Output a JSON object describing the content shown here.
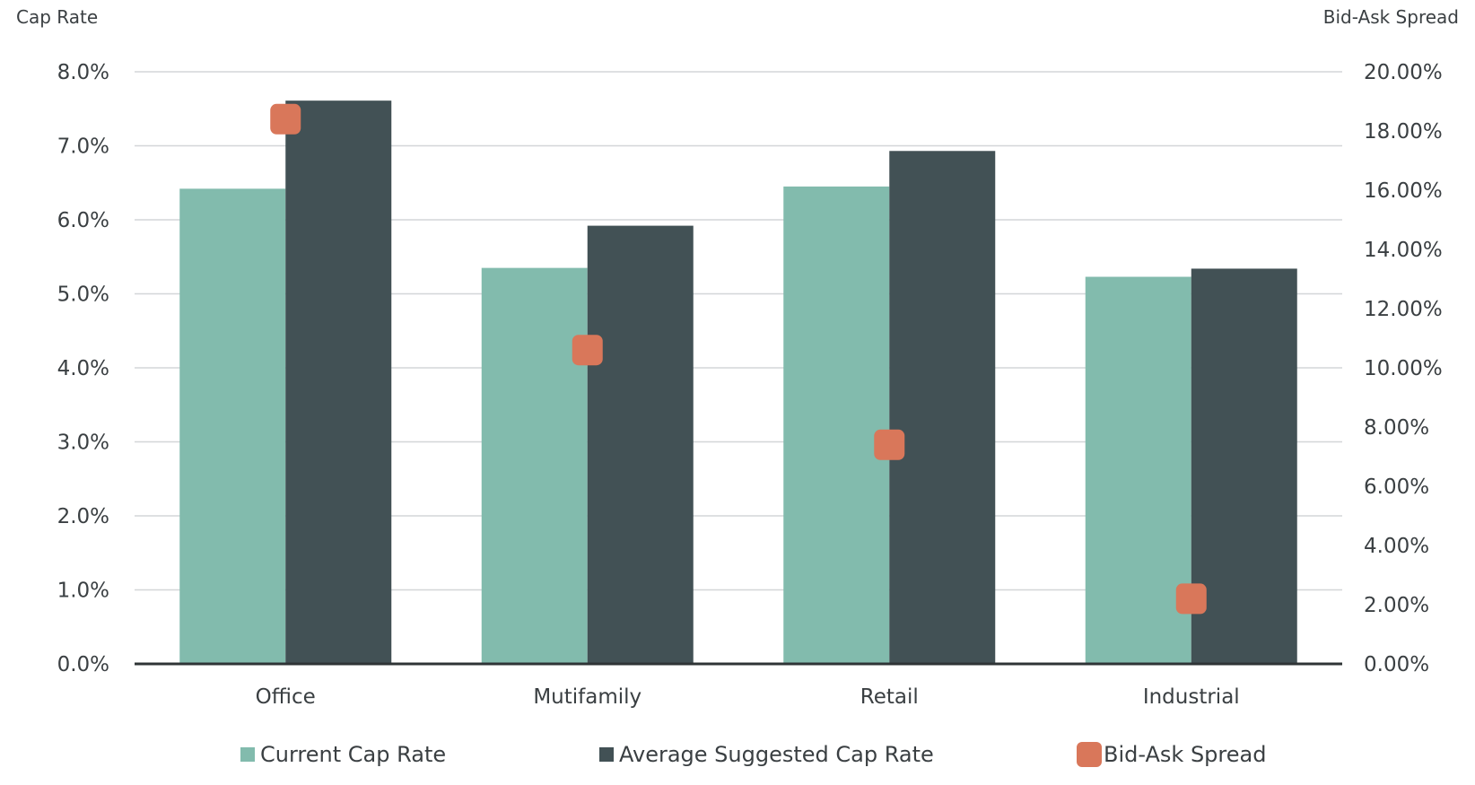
{
  "chart_data": {
    "type": "bar",
    "categories": [
      "Office",
      "Mutifamily",
      "Retail",
      "Industrial"
    ],
    "series": [
      {
        "name": "Current Cap Rate",
        "axis": "left",
        "kind": "bar",
        "color": "#82BBAD",
        "values": [
          6.42,
          5.35,
          6.45,
          5.23
        ]
      },
      {
        "name": "Average Suggested Cap Rate",
        "axis": "left",
        "kind": "bar",
        "color": "#425155",
        "values": [
          7.61,
          5.92,
          6.93,
          5.34
        ]
      },
      {
        "name": "Bid-Ask Spread",
        "axis": "right",
        "kind": "marker",
        "color": "#D9775A",
        "values": [
          18.4,
          10.6,
          7.4,
          2.2
        ]
      }
    ],
    "y_left": {
      "label": "Cap Rate",
      "ylim": [
        0,
        8
      ],
      "ticks": [
        "0.0%",
        "1.0%",
        "2.0%",
        "3.0%",
        "4.0%",
        "5.0%",
        "6.0%",
        "7.0%",
        "8.0%"
      ]
    },
    "y_right": {
      "label": "Bid-Ask Spread",
      "ylim": [
        0,
        20
      ],
      "ticks": [
        "0.00%",
        "2.00%",
        "4.00%",
        "6.00%",
        "8.00%",
        "10.00%",
        "12.00%",
        "14.00%",
        "16.00%",
        "18.00%",
        "20.00%"
      ]
    },
    "grid": true,
    "legend": "bottom",
    "title": ""
  }
}
